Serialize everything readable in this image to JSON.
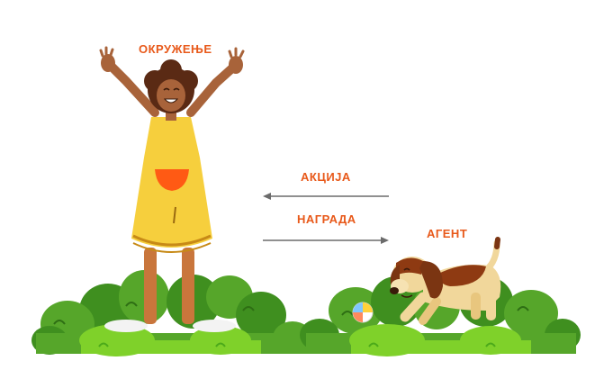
{
  "labels": {
    "environment": "ОКРУЖЕЊЕ",
    "action": "АКЦИЈА",
    "reward": "НАГРАДА",
    "agent": "АГЕНТ"
  },
  "colors": {
    "label": "#e8591a",
    "arrow": "#6b6b6b",
    "bush_dark": "#3f8f1f",
    "bush_mid": "#56a62a",
    "bush_light": "#7fd12a",
    "dress": "#f6cf3d",
    "skin": "#a8633a",
    "hair": "#5a2a14",
    "dog_body": "#f1d79b",
    "dog_ears": "#7b3512"
  },
  "icons": {
    "person": "girl-environment-icon",
    "dog": "dog-agent-icon",
    "ball": "beach-ball-icon"
  }
}
